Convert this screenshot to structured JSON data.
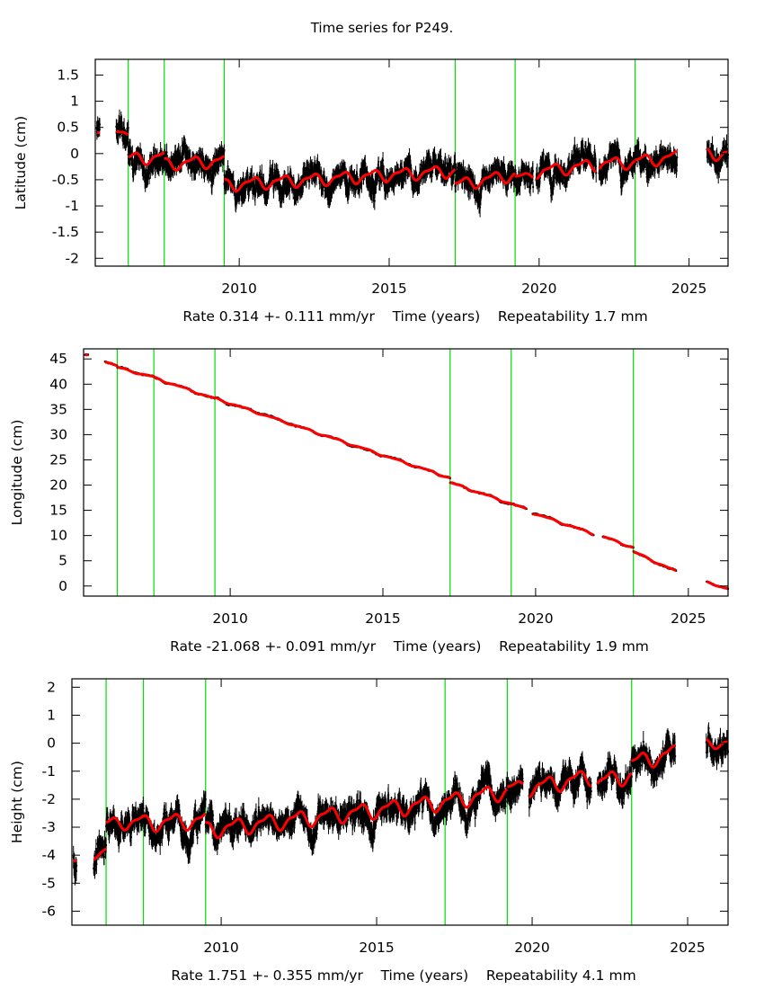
{
  "title": "Time series for P249.",
  "chart_data": [
    {
      "type": "scatter",
      "component": "latitude",
      "ylabel": "Latitude (cm)",
      "xlabel": "Time (years)",
      "rate_text": "Rate 0.314 +- 0.111 mm/yr",
      "repeatability_text": "Repeatability 1.7 mm",
      "xlim": [
        2005.2,
        2026.3
      ],
      "ylim": [
        -2.15,
        1.8
      ],
      "xticks": [
        2010,
        2015,
        2020,
        2025
      ],
      "yticks": [
        1.5,
        1,
        0.5,
        0,
        -0.5,
        -1,
        -1.5,
        -2
      ],
      "ytick_labels": [
        "1.5",
        "1",
        "0.5",
        "0",
        "-0.5",
        "-1",
        "-1.5",
        "-2"
      ],
      "offsets": [
        2006.3,
        2007.5,
        2009.5,
        2017.2,
        2019.2,
        2023.2
      ],
      "segments": [
        {
          "start": 2005.25,
          "end": 2005.35,
          "level": 0.4,
          "trend": 0,
          "amp": 0,
          "noise": 0.3
        },
        {
          "start": 2005.9,
          "end": 2006.3,
          "level": 0.5,
          "trend": -0.4,
          "amp": 0.05,
          "noise": 0.35
        },
        {
          "start": 2006.3,
          "end": 2007.5,
          "level": -0.1,
          "trend": 0.03,
          "amp": 0.1,
          "noise": 0.35
        },
        {
          "start": 2007.5,
          "end": 2009.5,
          "level": -0.2,
          "trend": 0.03,
          "amp": 0.1,
          "noise": 0.35
        },
        {
          "start": 2009.5,
          "end": 2017.2,
          "level": -0.6,
          "trend": 0.035,
          "amp": 0.1,
          "noise": 0.35
        },
        {
          "start": 2017.2,
          "end": 2019.2,
          "level": -0.6,
          "trend": 0.1,
          "amp": 0.1,
          "noise": 0.35
        },
        {
          "start": 2019.2,
          "end": 2019.8,
          "level": -0.45,
          "trend": 0.05,
          "amp": 0.05,
          "noise": 0.35
        },
        {
          "start": 2019.9,
          "end": 2021.9,
          "level": -0.35,
          "trend": 0.07,
          "amp": 0.1,
          "noise": 0.35
        },
        {
          "start": 2022.0,
          "end": 2023.2,
          "level": -0.2,
          "trend": 0.03,
          "amp": 0.1,
          "noise": 0.35
        },
        {
          "start": 2023.2,
          "end": 2024.6,
          "level": -0.15,
          "trend": 0.06,
          "amp": 0.1,
          "noise": 0.35
        },
        {
          "start": 2025.6,
          "end": 2026.3,
          "level": 0.0,
          "trend": 0.0,
          "amp": 0.1,
          "noise": 0.35
        }
      ]
    },
    {
      "type": "scatter",
      "component": "longitude",
      "ylabel": "Longitude (cm)",
      "xlabel": "Time (years)",
      "rate_text": "Rate -21.068 +- 0.091 mm/yr",
      "repeatability_text": "Repeatability 1.9 mm",
      "xlim": [
        2005.2,
        2026.3
      ],
      "ylim": [
        -2,
        47
      ],
      "xticks": [
        2010,
        2015,
        2020,
        2025
      ],
      "yticks": [
        45,
        40,
        35,
        30,
        25,
        20,
        15,
        10,
        5,
        0
      ],
      "ytick_labels": [
        "45",
        "40",
        "35",
        "30",
        "25",
        "20",
        "15",
        "10",
        "5",
        "0"
      ],
      "offsets": [
        2006.3,
        2007.5,
        2009.5,
        2017.2,
        2019.2,
        2023.2
      ],
      "segments": [
        {
          "start": 2005.25,
          "end": 2005.35,
          "level": 45.8,
          "trend": 0,
          "amp": 0,
          "noise": 0.2
        },
        {
          "start": 2005.9,
          "end": 2006.3,
          "level": 44.6,
          "trend": -2.5,
          "amp": 0.1,
          "noise": 0.2
        },
        {
          "start": 2006.3,
          "end": 2007.5,
          "level": 43.3,
          "trend": -1.6,
          "amp": 0.15,
          "noise": 0.2
        },
        {
          "start": 2007.5,
          "end": 2009.5,
          "level": 41.3,
          "trend": -2.1,
          "amp": 0.15,
          "noise": 0.2
        },
        {
          "start": 2009.5,
          "end": 2017.2,
          "level": 37.2,
          "trend": -2.05,
          "amp": 0.15,
          "noise": 0.2
        },
        {
          "start": 2017.2,
          "end": 2019.2,
          "level": 20.5,
          "trend": -2.1,
          "amp": 0.15,
          "noise": 0.2
        },
        {
          "start": 2019.2,
          "end": 2019.7,
          "level": 16.3,
          "trend": -2.1,
          "amp": 0.1,
          "noise": 0.2
        },
        {
          "start": 2019.9,
          "end": 2021.9,
          "level": 14.5,
          "trend": -2.1,
          "amp": 0.15,
          "noise": 0.2
        },
        {
          "start": 2022.2,
          "end": 2023.2,
          "level": 9.8,
          "trend": -2.2,
          "amp": 0.15,
          "noise": 0.2
        },
        {
          "start": 2023.2,
          "end": 2024.6,
          "level": 6.8,
          "trend": -2.8,
          "amp": 0.15,
          "noise": 0.2
        },
        {
          "start": 2025.6,
          "end": 2026.3,
          "level": 0.8,
          "trend": -2.0,
          "amp": 0.1,
          "noise": 0.2
        }
      ]
    },
    {
      "type": "scatter",
      "component": "height",
      "ylabel": "Height (cm)",
      "xlabel": "Time (years)",
      "rate_text": "Rate 1.751 +- 0.355 mm/yr",
      "repeatability_text": "Repeatability 4.1 mm",
      "xlim": [
        2005.2,
        2026.3
      ],
      "ylim": [
        -6.5,
        2.3
      ],
      "xticks": [
        2010,
        2015,
        2020,
        2025
      ],
      "yticks": [
        2,
        1,
        0,
        -1,
        -2,
        -3,
        -4,
        -5,
        -6
      ],
      "ytick_labels": [
        "2",
        "1",
        "0",
        "-1",
        "-2",
        "-3",
        "-4",
        "-5",
        "-6"
      ],
      "offsets": [
        2006.3,
        2007.5,
        2009.5,
        2017.2,
        2019.2,
        2023.2
      ],
      "segments": [
        {
          "start": 2005.25,
          "end": 2005.35,
          "level": -4.2,
          "trend": 0,
          "amp": 0,
          "noise": 0.8
        },
        {
          "start": 2005.9,
          "end": 2006.3,
          "level": -4.1,
          "trend": 0.8,
          "amp": 0.05,
          "noise": 0.7
        },
        {
          "start": 2006.3,
          "end": 2007.5,
          "level": -2.9,
          "trend": 0.1,
          "amp": 0.2,
          "noise": 0.7
        },
        {
          "start": 2007.5,
          "end": 2009.5,
          "level": -2.85,
          "trend": 0.05,
          "amp": 0.25,
          "noise": 0.7
        },
        {
          "start": 2009.5,
          "end": 2017.2,
          "level": -3.1,
          "trend": 0.13,
          "amp": 0.25,
          "noise": 0.7
        },
        {
          "start": 2017.2,
          "end": 2019.2,
          "level": -2.1,
          "trend": 0.2,
          "amp": 0.25,
          "noise": 0.7
        },
        {
          "start": 2019.2,
          "end": 2019.7,
          "level": -1.6,
          "trend": 0.2,
          "amp": 0.15,
          "noise": 0.7
        },
        {
          "start": 2019.9,
          "end": 2021.9,
          "level": -1.6,
          "trend": 0.2,
          "amp": 0.25,
          "noise": 0.7
        },
        {
          "start": 2022.1,
          "end": 2023.2,
          "level": -1.4,
          "trend": 0.25,
          "amp": 0.25,
          "noise": 0.7
        },
        {
          "start": 2023.2,
          "end": 2024.6,
          "level": -0.7,
          "trend": 0.25,
          "amp": 0.25,
          "noise": 0.7
        },
        {
          "start": 2025.6,
          "end": 2026.3,
          "level": 0.0,
          "trend": 0.0,
          "amp": 0.15,
          "noise": 0.7
        }
      ]
    }
  ],
  "colors": {
    "data": "#000000",
    "model": "#ff0000",
    "offset_line": "#00dd00",
    "frame": "#000000"
  }
}
